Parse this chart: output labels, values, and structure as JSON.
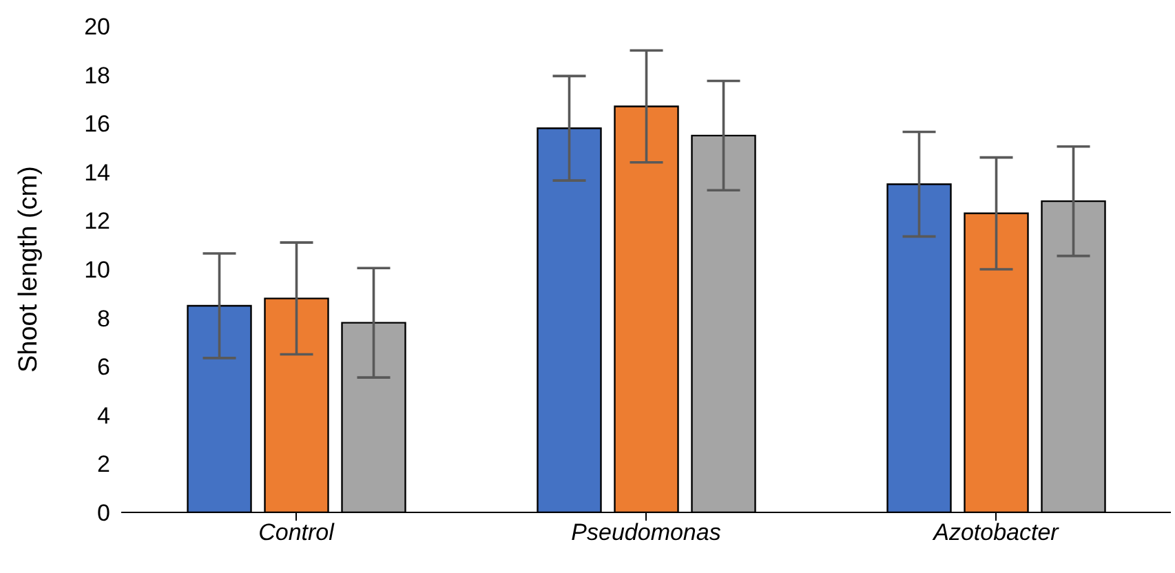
{
  "chart_data": {
    "type": "bar",
    "ylabel": "Shoot length (cm)",
    "categories": [
      "Control",
      "Pseudomonas",
      "Azotobacter"
    ],
    "series": [
      {
        "color": "#4472c4",
        "values": [
          8.5,
          15.8,
          13.5
        ],
        "errors": [
          2.15,
          2.15,
          2.15
        ]
      },
      {
        "color": "#ed7d31",
        "values": [
          8.8,
          16.7,
          12.3
        ],
        "errors": [
          2.3,
          2.3,
          2.3
        ]
      },
      {
        "color": "#a5a5a5",
        "values": [
          7.8,
          15.5,
          12.8
        ],
        "errors": [
          2.25,
          2.25,
          2.25
        ]
      }
    ],
    "ylim": [
      0,
      20
    ],
    "yticks": [
      0,
      2,
      4,
      6,
      8,
      10,
      12,
      14,
      16,
      18,
      20
    ],
    "grid": false,
    "legend": false
  }
}
